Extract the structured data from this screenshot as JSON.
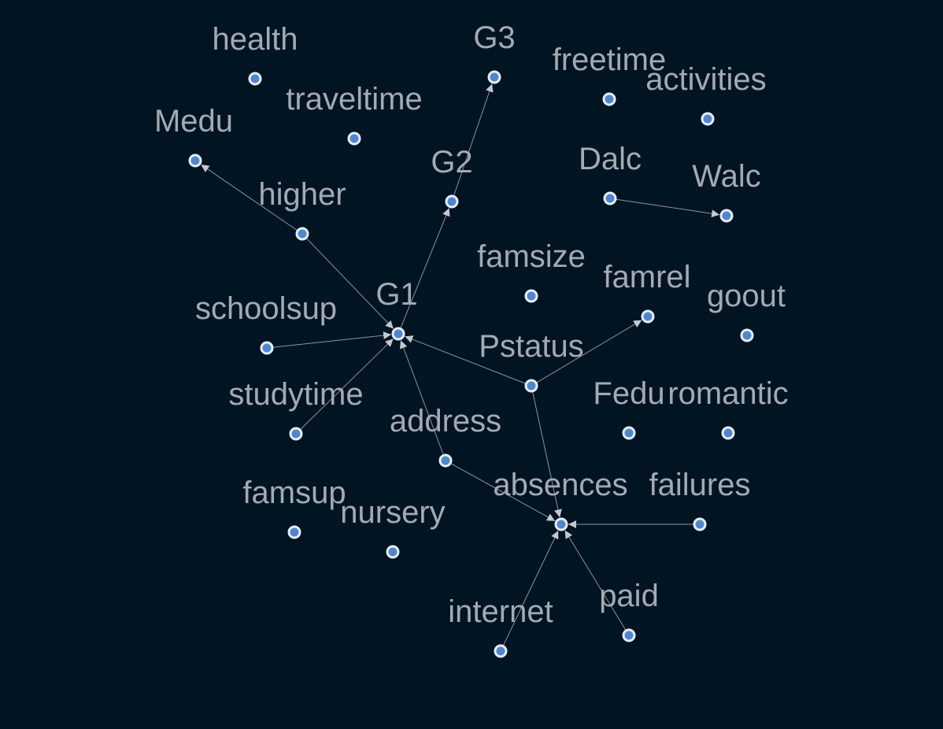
{
  "graph": {
    "background": "#011421",
    "node_fill": "#4a87d6",
    "node_stroke": "#e9eef4",
    "label_color": "#a3aab1",
    "edge_color": "#8d949b",
    "nodes": [
      {
        "id": "health",
        "label": "health"
      },
      {
        "id": "G3",
        "label": "G3"
      },
      {
        "id": "freetime",
        "label": "freetime"
      },
      {
        "id": "activities",
        "label": "activities"
      },
      {
        "id": "traveltime",
        "label": "traveltime"
      },
      {
        "id": "Medu",
        "label": "Medu"
      },
      {
        "id": "G2",
        "label": "G2"
      },
      {
        "id": "Dalc",
        "label": "Dalc"
      },
      {
        "id": "Walc",
        "label": "Walc"
      },
      {
        "id": "higher",
        "label": "higher"
      },
      {
        "id": "famsize",
        "label": "famsize"
      },
      {
        "id": "famrel",
        "label": "famrel"
      },
      {
        "id": "G1",
        "label": "G1"
      },
      {
        "id": "schoolsup",
        "label": "schoolsup"
      },
      {
        "id": "goout",
        "label": "goout"
      },
      {
        "id": "Pstatus",
        "label": "Pstatus"
      },
      {
        "id": "studytime",
        "label": "studytime"
      },
      {
        "id": "Fedu",
        "label": "Fedu"
      },
      {
        "id": "romantic",
        "label": "romantic"
      },
      {
        "id": "address",
        "label": "address"
      },
      {
        "id": "absences",
        "label": "absences"
      },
      {
        "id": "failures",
        "label": "failures"
      },
      {
        "id": "famsup",
        "label": "famsup"
      },
      {
        "id": "nursery",
        "label": "nursery"
      },
      {
        "id": "paid",
        "label": "paid"
      },
      {
        "id": "internet",
        "label": "internet"
      }
    ],
    "edges": [
      {
        "from": "higher",
        "to": "Medu"
      },
      {
        "from": "higher",
        "to": "G1"
      },
      {
        "from": "G1",
        "to": "G2"
      },
      {
        "from": "G2",
        "to": "G3"
      },
      {
        "from": "Dalc",
        "to": "Walc"
      },
      {
        "from": "schoolsup",
        "to": "G1"
      },
      {
        "from": "studytime",
        "to": "G1"
      },
      {
        "from": "Pstatus",
        "to": "G1"
      },
      {
        "from": "address",
        "to": "G1"
      },
      {
        "from": "Pstatus",
        "to": "famrel"
      },
      {
        "from": "Pstatus",
        "to": "absences"
      },
      {
        "from": "address",
        "to": "absences"
      },
      {
        "from": "failures",
        "to": "absences"
      },
      {
        "from": "internet",
        "to": "absences"
      },
      {
        "from": "paid",
        "to": "absences"
      }
    ]
  }
}
